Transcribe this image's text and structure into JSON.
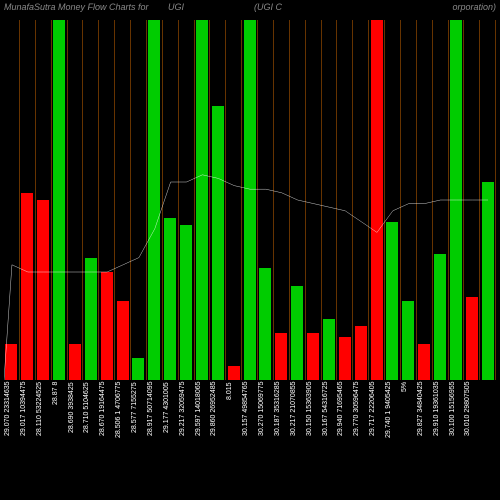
{
  "header": {
    "left": "MunafaSutra   Money Flow   Charts for",
    "mid_left": "UGI",
    "mid_right": "(UGI C",
    "right": "orporation)"
  },
  "chart": {
    "type": "bar",
    "background_color": "#000000",
    "grid_color": "#663300",
    "line_color": "#ffffff",
    "positive_color": "#00cc00",
    "negative_color": "#ff0000",
    "ylim": [
      0,
      100
    ],
    "bars": [
      {
        "h": 10,
        "c": "neg",
        "label": "29.070 23314635",
        "line": 68
      },
      {
        "h": 52,
        "c": "neg",
        "label": "29.017 10394475",
        "line": 70
      },
      {
        "h": 50,
        "c": "neg",
        "label": "28.110 53224525",
        "line": 70
      },
      {
        "h": 100,
        "c": "pos",
        "label": "28.87 8",
        "line": 70
      },
      {
        "h": 10,
        "c": "neg",
        "label": "28.690 3938425",
        "line": 70
      },
      {
        "h": 34,
        "c": "pos",
        "label": "28.710 5104625",
        "line": 70
      },
      {
        "h": 30,
        "c": "neg",
        "label": "28.670 19164475",
        "line": 70
      },
      {
        "h": 22,
        "c": "neg",
        "label": "28.506 1 4706775",
        "line": 68
      },
      {
        "h": 6,
        "c": "pos",
        "label": "28.577 7155275",
        "line": 66
      },
      {
        "h": 100,
        "c": "pos",
        "label": "28.917 50714095",
        "line": 58
      },
      {
        "h": 45,
        "c": "pos",
        "label": "29.177 4301005",
        "line": 45
      },
      {
        "h": 43,
        "c": "pos",
        "label": "29.217 32059475",
        "line": 45
      },
      {
        "h": 100,
        "c": "pos",
        "label": "29.597 14018065",
        "line": 43
      },
      {
        "h": 76,
        "c": "pos",
        "label": "29.860 26952485",
        "line": 44
      },
      {
        "h": 4,
        "c": "neg",
        "label": "8.015",
        "line": 46
      },
      {
        "h": 100,
        "c": "pos",
        "label": "30.157 49854765",
        "line": 47
      },
      {
        "h": 31,
        "c": "pos",
        "label": "30.270 15069775",
        "line": 47
      },
      {
        "h": 13,
        "c": "neg",
        "label": "30.187 35316285",
        "line": 48
      },
      {
        "h": 26,
        "c": "pos",
        "label": "30.217 21070855",
        "line": 50
      },
      {
        "h": 13,
        "c": "neg",
        "label": "30.150 15363905",
        "line": 51
      },
      {
        "h": 17,
        "c": "pos",
        "label": "30.167 54316725",
        "line": 52
      },
      {
        "h": 12,
        "c": "neg",
        "label": "29.940 71695465",
        "line": 53
      },
      {
        "h": 15,
        "c": "neg",
        "label": "29.770 30596475",
        "line": 56
      },
      {
        "h": 100,
        "c": "neg",
        "label": "29.717 22206405",
        "line": 59
      },
      {
        "h": 44,
        "c": "pos",
        "label": "29.740 1 9405425",
        "line": 53
      },
      {
        "h": 22,
        "c": "pos",
        "label": "5%",
        "line": 51
      },
      {
        "h": 10,
        "c": "neg",
        "label": "29.827 34840425",
        "line": 51
      },
      {
        "h": 35,
        "c": "pos",
        "label": "29.910 19361035",
        "line": 50
      },
      {
        "h": 100,
        "c": "pos",
        "label": "30.100 15156955",
        "line": 50
      },
      {
        "h": 23,
        "c": "neg",
        "label": "30.010 29807505",
        "line": 50
      },
      {
        "h": 55,
        "c": "pos",
        "label": "",
        "line": 50
      }
    ]
  }
}
